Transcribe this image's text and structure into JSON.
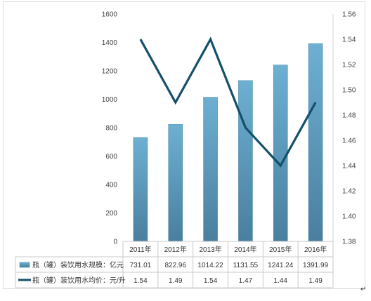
{
  "chart_data": {
    "type": "bar",
    "categories": [
      "2011年",
      "2012年",
      "2013年",
      "2014年",
      "2015年",
      "2016年"
    ],
    "series": [
      {
        "name": "瓶（罐）装饮用水规模：亿元",
        "type": "bar",
        "axis": "left",
        "values": [
          731.01,
          822.96,
          1014.22,
          1131.55,
          1241.24,
          1391.99
        ],
        "value_labels": [
          "731.01",
          "822.96",
          "1014.22",
          "1131.55",
          "1241.24",
          "1391.99"
        ]
      },
      {
        "name": "瓶（罐）装饮用水均价：元/升",
        "type": "line",
        "axis": "right",
        "values": [
          1.54,
          1.49,
          1.54,
          1.47,
          1.44,
          1.49
        ],
        "value_labels": [
          "1.54",
          "1.49",
          "1.54",
          "1.47",
          "1.44",
          "1.49"
        ]
      }
    ],
    "left_axis": {
      "ylim": [
        0,
        1600
      ],
      "ticks": [
        "0",
        "200",
        "400",
        "600",
        "800",
        "1000",
        "1200",
        "1400",
        "1600"
      ]
    },
    "right_axis": {
      "ylim": [
        1.38,
        1.56
      ],
      "ticks": [
        "1.38",
        "1.40",
        "1.42",
        "1.44",
        "1.46",
        "1.48",
        "1.50",
        "1.52",
        "1.54",
        "1.56"
      ]
    },
    "data_table": true,
    "colors": {
      "bar": "#5b9dbf",
      "bar_dark": "#4a7f9e",
      "line": "#12506b"
    }
  },
  "footer": {
    "return_mark": "↵"
  }
}
